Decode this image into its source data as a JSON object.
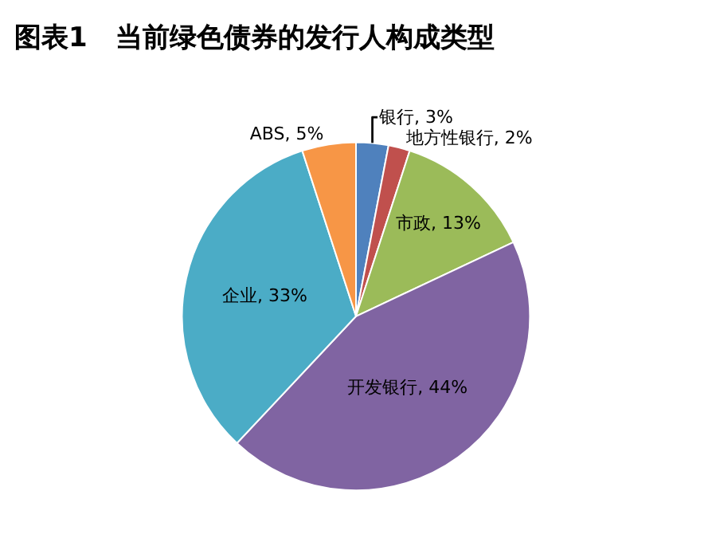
{
  "chart_data": {
    "type": "pie",
    "title": "图表1   当前绿色债券的发行人构成类型",
    "categories": [
      "银行",
      "地方性银行",
      "市政",
      "开发银行",
      "企业",
      "ABS"
    ],
    "values": [
      3,
      2,
      13,
      44,
      33,
      5
    ],
    "colors": [
      "#4f81bd",
      "#c0504d",
      "#9bbb59",
      "#8064a2",
      "#4bacc6",
      "#f79646"
    ],
    "value_labels": [
      "3%",
      "2%",
      "13%",
      "44%",
      "33%",
      "5%"
    ],
    "legend": false
  }
}
